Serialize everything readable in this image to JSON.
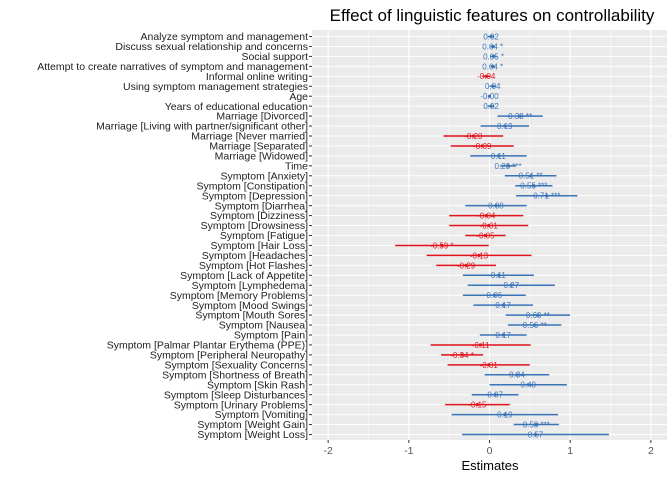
{
  "chart_data": {
    "type": "forest",
    "title": "Effect of linguistic features on controllability",
    "xlabel": "Estimates",
    "xlim": [
      -2.2,
      2.2
    ],
    "xticks": [
      -2,
      -1,
      0,
      1,
      2
    ],
    "grid": true,
    "colors": {
      "positive": "#3a74b9",
      "negative": "#e2131b",
      "panel": "#ebebeb",
      "gridline": "#ffffff"
    },
    "rows": [
      {
        "label": "Analyze symptom and management",
        "estimate": 0.02,
        "low": -0.02,
        "high": 0.06,
        "text": "0.02"
      },
      {
        "label": "Discuss sexual relationship and concerns",
        "estimate": 0.04,
        "low": 0.01,
        "high": 0.07,
        "text": "0.04 *"
      },
      {
        "label": "Social support",
        "estimate": 0.05,
        "low": 0.01,
        "high": 0.09,
        "text": "0.05 *"
      },
      {
        "label": "Attempt to create narratives of symptom and management",
        "estimate": 0.04,
        "low": 0.01,
        "high": 0.07,
        "text": "0.04 *"
      },
      {
        "label": "Informal online writing",
        "estimate": -0.04,
        "low": -0.09,
        "high": 0.01,
        "text": "-0.04"
      },
      {
        "label": "Using symptom management strategies",
        "estimate": 0.04,
        "low": 0.0,
        "high": 0.08,
        "text": "0.04"
      },
      {
        "label": "Age",
        "estimate": -0.0,
        "low": -0.02,
        "high": 0.02,
        "text": "-0.00"
      },
      {
        "label": "Years of educational education",
        "estimate": 0.02,
        "low": -0.02,
        "high": 0.06,
        "text": "0.02"
      },
      {
        "label": "Marriage [Divorced]",
        "estimate": 0.38,
        "low": 0.1,
        "high": 0.66,
        "text": "0.38 **"
      },
      {
        "label": "Marriage [Living with partner/significant other]",
        "estimate": 0.19,
        "low": -0.11,
        "high": 0.49,
        "text": "0.19"
      },
      {
        "label": "Marriage [Never married]",
        "estimate": -0.2,
        "low": -0.57,
        "high": 0.17,
        "text": "-0.20"
      },
      {
        "label": "Marriage [Separated]",
        "estimate": -0.09,
        "low": -0.48,
        "high": 0.3,
        "text": "-0.09"
      },
      {
        "label": "Marriage [Widowed]",
        "estimate": 0.11,
        "low": -0.24,
        "high": 0.46,
        "text": "0.11"
      },
      {
        "label": "Time",
        "estimate": 0.23,
        "low": 0.13,
        "high": 0.33,
        "text": "0.23 ***"
      },
      {
        "label": "Symptom [Anxiety]",
        "estimate": 0.51,
        "low": 0.19,
        "high": 0.83,
        "text": "0.51 **"
      },
      {
        "label": "Symptom [Constipation]",
        "estimate": 0.55,
        "low": 0.32,
        "high": 0.78,
        "text": "0.55 ***"
      },
      {
        "label": "Symptom [Depression]",
        "estimate": 0.71,
        "low": 0.33,
        "high": 1.09,
        "text": "0.71 ***"
      },
      {
        "label": "Symptom [Diarrhea]",
        "estimate": 0.08,
        "low": -0.3,
        "high": 0.46,
        "text": "0.08"
      },
      {
        "label": "Symptom [Dizziness]",
        "estimate": -0.04,
        "low": -0.5,
        "high": 0.42,
        "text": "-0.04"
      },
      {
        "label": "Symptom [Drowsiness]",
        "estimate": -0.01,
        "low": -0.5,
        "high": 0.48,
        "text": "-0.01"
      },
      {
        "label": "Symptom [Fatigue]",
        "estimate": -0.05,
        "low": -0.3,
        "high": 0.2,
        "text": "-0.05"
      },
      {
        "label": "Symptom [Hair Loss]",
        "estimate": -0.59,
        "low": -1.17,
        "high": -0.01,
        "text": "-0.59 *"
      },
      {
        "label": "Symptom [Headaches]",
        "estimate": -0.13,
        "low": -0.78,
        "high": 0.52,
        "text": "-0.13"
      },
      {
        "label": "Symptom [Hot Flashes]",
        "estimate": -0.29,
        "low": -0.66,
        "high": 0.08,
        "text": "-0.29"
      },
      {
        "label": "Symptom [Lack of Appetite]",
        "estimate": 0.11,
        "low": -0.33,
        "high": 0.55,
        "text": "0.11"
      },
      {
        "label": "Symptom [Lymphedema]",
        "estimate": 0.27,
        "low": -0.27,
        "high": 0.81,
        "text": "0.27"
      },
      {
        "label": "Symptom [Memory Problems]",
        "estimate": 0.06,
        "low": -0.33,
        "high": 0.45,
        "text": "0.06"
      },
      {
        "label": "Symptom [Mood Swings]",
        "estimate": 0.17,
        "low": -0.2,
        "high": 0.54,
        "text": "0.17"
      },
      {
        "label": "Symptom [Mouth Sores]",
        "estimate": 0.6,
        "low": 0.2,
        "high": 1.0,
        "text": "0.60 **"
      },
      {
        "label": "Symptom [Nausea]",
        "estimate": 0.56,
        "low": 0.23,
        "high": 0.89,
        "text": "0.56 **"
      },
      {
        "label": "Symptom [Pain]",
        "estimate": 0.17,
        "low": -0.12,
        "high": 0.46,
        "text": "0.17"
      },
      {
        "label": "Symptom [Palmar Plantar Erythema (PPE)]",
        "estimate": -0.11,
        "low": -0.73,
        "high": 0.51,
        "text": "-0.11"
      },
      {
        "label": "Symptom [Peripheral Neuropathy]",
        "estimate": -0.34,
        "low": -0.6,
        "high": -0.08,
        "text": "-0.34 *"
      },
      {
        "label": "Symptom [Sexuality Concerns]",
        "estimate": -0.01,
        "low": -0.52,
        "high": 0.5,
        "text": "-0.01"
      },
      {
        "label": "Symptom [Shortness of Breath]",
        "estimate": 0.34,
        "low": -0.06,
        "high": 0.74,
        "text": "0.34"
      },
      {
        "label": "Symptom [Skin Rash]",
        "estimate": 0.48,
        "low": 0.0,
        "high": 0.96,
        "text": "0.48"
      },
      {
        "label": "Symptom [Sleep Disturbances]",
        "estimate": 0.07,
        "low": -0.22,
        "high": 0.36,
        "text": "0.07"
      },
      {
        "label": "Symptom [Urinary Problems]",
        "estimate": -0.15,
        "low": -0.55,
        "high": 0.25,
        "text": "-0.15"
      },
      {
        "label": "Symptom [Vomiting]",
        "estimate": 0.19,
        "low": -0.47,
        "high": 0.85,
        "text": "0.19"
      },
      {
        "label": "Symptom [Weight Gain]",
        "estimate": 0.58,
        "low": 0.3,
        "high": 0.86,
        "text": "0.58 ***"
      },
      {
        "label": "Symptom [Weight Loss]",
        "estimate": 0.57,
        "low": -0.34,
        "high": 1.48,
        "text": "0.57"
      }
    ]
  }
}
